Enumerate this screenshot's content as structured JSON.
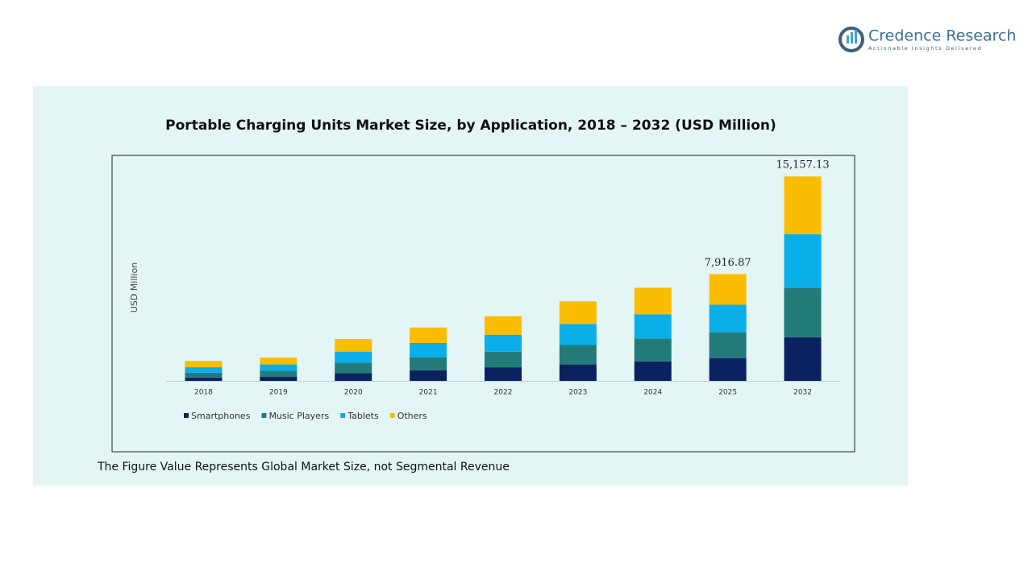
{
  "brand": {
    "name": "Credence Research",
    "tagline": "Actionable Insights Delivered"
  },
  "chart_data": {
    "type": "stacked_bar",
    "title": "Portable Charging Units Market Size, by Application, 2018 – 2032 (USD Million)",
    "ylabel": "USD Million",
    "categories": [
      "2018",
      "2019",
      "2020",
      "2021",
      "2022",
      "2023",
      "2024",
      "2025",
      "2032"
    ],
    "series": [
      {
        "name": "Smartphones",
        "color": "#0b2260",
        "values": [
          250,
          320,
          580,
          790,
          1010,
          1220,
          1440,
          1692.4,
          3239.3
        ]
      },
      {
        "name": "Music Players",
        "color": "#237b79",
        "values": [
          360,
          430,
          760,
          940,
          1150,
          1440,
          1690,
          1908.6,
          3667.1
        ]
      },
      {
        "name": "Tablets",
        "color": "#0aaee8",
        "values": [
          400,
          470,
          830,
          1080,
          1260,
          1550,
          1800,
          2051.3,
          3972.6
        ]
      },
      {
        "name": "Others",
        "color": "#fbbd02",
        "values": [
          470,
          500,
          940,
          1150,
          1370,
          1690,
          1980,
          2264.57,
          4278.13
        ]
      }
    ],
    "totals": {
      "values": [
        null,
        null,
        null,
        null,
        null,
        null,
        null,
        7916.87,
        15157.13
      ],
      "value_labels": [
        null,
        null,
        null,
        null,
        null,
        null,
        null,
        "7,916.87",
        "15,157.13"
      ]
    },
    "ylim": [
      0,
      16000
    ],
    "legend": "bottom-left",
    "footnote": "The Figure Value Represents Global Market Size, not Segmental Revenue"
  }
}
